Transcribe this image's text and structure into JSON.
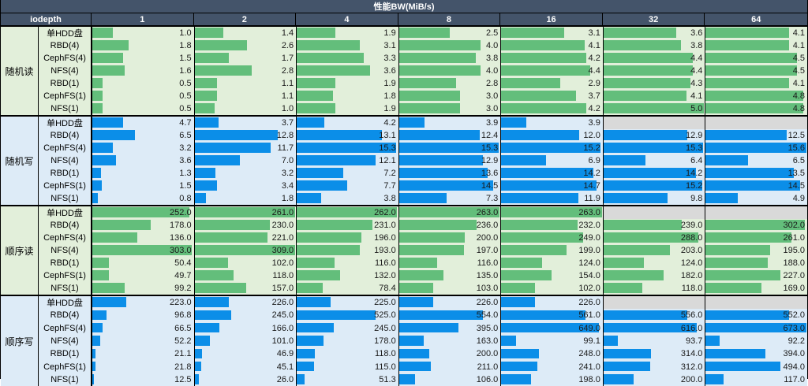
{
  "title": "性能BW(MiB/s)",
  "header": {
    "iodepth_label": "iodepth",
    "columns": [
      "1",
      "2",
      "4",
      "8",
      "16",
      "32",
      "64"
    ]
  },
  "colors": {
    "header_bg": "#44546A",
    "header_text": "#FFFFFF",
    "read_bar": "#63BE7B",
    "read_bg": "#E2EFDA",
    "write_bar": "#0B8EE8",
    "write_bg": "#DDEBF7",
    "empty_cell": "#D9D9D9",
    "value_text": "#1A1A1A"
  },
  "chart_data": {
    "type": "bar",
    "title": "性能BW(MiB/s)",
    "xlabel": "iodepth",
    "ylabel": "BW (MiB/s)",
    "orientation": "horizontal-databars",
    "columns": [
      1,
      2,
      4,
      8,
      16,
      32,
      64
    ],
    "groups": [
      {
        "label": "随机读",
        "kind": "read",
        "bar_scale_max": 5.0,
        "rows": [
          {
            "label": "单HDD盘",
            "values": [
              1.0,
              1.4,
              1.9,
              2.5,
              3.1,
              3.6,
              4.1
            ]
          },
          {
            "label": "RBD(4)",
            "values": [
              1.8,
              2.6,
              3.1,
              4.0,
              4.1,
              3.8,
              4.1
            ]
          },
          {
            "label": "CephFS(4)",
            "values": [
              1.5,
              1.7,
              3.3,
              3.8,
              4.2,
              4.4,
              4.5
            ]
          },
          {
            "label": "NFS(4)",
            "values": [
              1.6,
              2.8,
              3.6,
              4.0,
              4.4,
              4.4,
              4.5
            ]
          },
          {
            "label": "RBD(1)",
            "values": [
              0.5,
              1.1,
              1.9,
              2.8,
              2.9,
              4.3,
              4.1
            ]
          },
          {
            "label": "CephFS(1)",
            "values": [
              0.5,
              1.1,
              1.8,
              3.0,
              3.7,
              4.1,
              4.8
            ]
          },
          {
            "label": "NFS(1)",
            "values": [
              0.5,
              1.0,
              1.9,
              3.0,
              4.2,
              5.0,
              4.8
            ]
          }
        ]
      },
      {
        "label": "随机写",
        "kind": "write",
        "bar_scale_max": 15.6,
        "rows": [
          {
            "label": "单HDD盘",
            "values": [
              4.7,
              3.7,
              4.2,
              3.9,
              3.9,
              null,
              null
            ]
          },
          {
            "label": "RBD(4)",
            "values": [
              6.5,
              12.8,
              13.1,
              12.4,
              12.0,
              12.9,
              12.5
            ]
          },
          {
            "label": "CephFS(4)",
            "values": [
              3.2,
              11.7,
              15.3,
              15.3,
              15.2,
              15.3,
              15.6
            ]
          },
          {
            "label": "NFS(4)",
            "values": [
              3.6,
              7.0,
              12.1,
              12.9,
              6.9,
              6.4,
              6.5
            ]
          },
          {
            "label": "RBD(1)",
            "values": [
              1.3,
              3.2,
              7.2,
              13.6,
              14.2,
              14.2,
              13.5
            ]
          },
          {
            "label": "CephFS(1)",
            "values": [
              1.5,
              3.4,
              7.7,
              14.5,
              14.7,
              15.2,
              14.5
            ]
          },
          {
            "label": "NFS(1)",
            "values": [
              0.8,
              1.8,
              3.8,
              7.3,
              11.9,
              9.8,
              4.9
            ]
          }
        ]
      },
      {
        "label": "顺序读",
        "kind": "read",
        "bar_scale_max": 309.0,
        "rows": [
          {
            "label": "单HDD盘",
            "row_scale_max": 263.0,
            "values": [
              252.0,
              261.0,
              262.0,
              263.0,
              263.0,
              null,
              null
            ]
          },
          {
            "label": "RBD(4)",
            "values": [
              178.0,
              230.0,
              231.0,
              236.0,
              232.0,
              239.0,
              302.0
            ]
          },
          {
            "label": "CephFS(4)",
            "values": [
              136.0,
              221.0,
              196.0,
              200.0,
              249.0,
              288.0,
              261.0
            ]
          },
          {
            "label": "NFS(4)",
            "values": [
              303.0,
              309.0,
              193.0,
              197.0,
              199.0,
              203.0,
              195.0
            ]
          },
          {
            "label": "RBD(1)",
            "values": [
              50.4,
              102.0,
              116.0,
              116.0,
              124.0,
              124.0,
              188.0
            ]
          },
          {
            "label": "CephFS(1)",
            "values": [
              49.7,
              118.0,
              132.0,
              135.0,
              154.0,
              182.0,
              227.0
            ]
          },
          {
            "label": "NFS(1)",
            "values": [
              99.2,
              157.0,
              78.4,
              103.0,
              102.0,
              118.0,
              169.0
            ]
          }
        ]
      },
      {
        "label": "顺序写",
        "kind": "write",
        "bar_scale_max": 673.0,
        "rows": [
          {
            "label": "单HDD盘",
            "values": [
              223.0,
              226.0,
              225.0,
              226.0,
              226.0,
              null,
              null
            ]
          },
          {
            "label": "RBD(4)",
            "values": [
              96.8,
              245.0,
              525.0,
              554.0,
              561.0,
              556.0,
              552.0
            ]
          },
          {
            "label": "CephFS(4)",
            "values": [
              66.5,
              166.0,
              245.0,
              395.0,
              649.0,
              616.0,
              673.0
            ]
          },
          {
            "label": "NFS(4)",
            "values": [
              52.2,
              101.0,
              178.0,
              163.0,
              99.1,
              93.7,
              92.2
            ]
          },
          {
            "label": "RBD(1)",
            "values": [
              21.1,
              46.9,
              118.0,
              200.0,
              248.0,
              314.0,
              394.0
            ]
          },
          {
            "label": "CephFS(1)",
            "values": [
              21.8,
              45.1,
              115.0,
              211.0,
              241.0,
              312.0,
              494.0
            ]
          },
          {
            "label": "NFS(1)",
            "values": [
              12.5,
              26.0,
              51.3,
              106.0,
              198.0,
              200.0,
              117.0
            ]
          }
        ]
      }
    ]
  }
}
